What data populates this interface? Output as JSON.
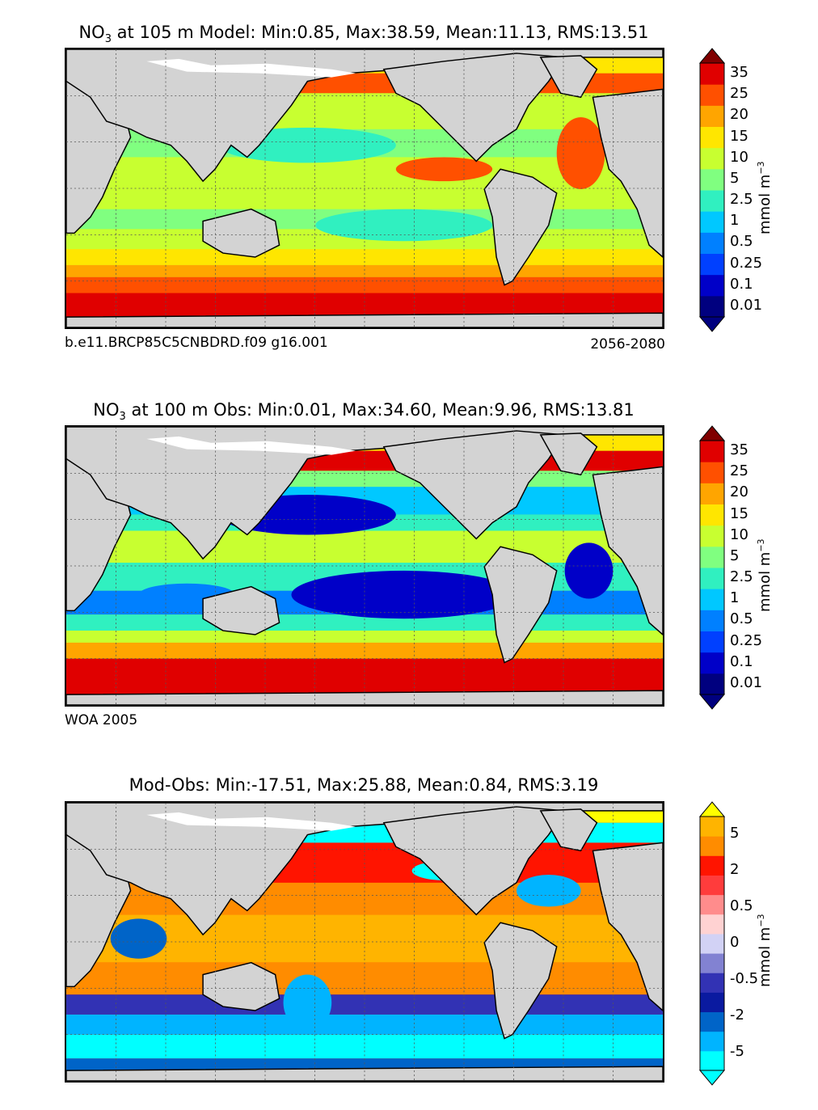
{
  "chart_data": [
    {
      "type": "heatmap",
      "title_prefix": "NO",
      "title_sub": "3",
      "title_rest": "at 105 m Model: Min:0.85, Max:38.59, Mean:11.13, RMS:13.51",
      "stats": {
        "min": 0.85,
        "max": 38.59,
        "mean": 11.13,
        "rms": 13.51
      },
      "footer_left": "b.e11.BRCP85C5CNBDRD.f09 g16.001",
      "footer_right": "2056-2080",
      "colorbar": {
        "unit": "mmol m",
        "unit_sup": "−3",
        "levels": [
          "0.01",
          "0.1",
          "0.25",
          "0.5",
          "1",
          "2.5",
          "5",
          "10",
          "15",
          "20",
          "25",
          "35"
        ],
        "colors": [
          "#00007f",
          "#0000c8",
          "#0040ff",
          "#0080ff",
          "#00c8ff",
          "#30f0c0",
          "#80ff80",
          "#c8ff30",
          "#ffe600",
          "#ffa500",
          "#ff5000",
          "#e00000",
          "#800000"
        ]
      }
    },
    {
      "type": "heatmap",
      "title_prefix": "NO",
      "title_sub": "3",
      "title_rest": "at 100 m Obs: Min:0.01, Max:34.60, Mean:9.96, RMS:13.81",
      "stats": {
        "min": 0.01,
        "max": 34.6,
        "mean": 9.96,
        "rms": 13.81
      },
      "footer_left": "WOA 2005",
      "footer_right": "",
      "colorbar": {
        "unit": "mmol m",
        "unit_sup": "−3",
        "levels": [
          "0.01",
          "0.1",
          "0.25",
          "0.5",
          "1",
          "2.5",
          "5",
          "10",
          "15",
          "20",
          "25",
          "35"
        ],
        "colors": [
          "#00007f",
          "#0000c8",
          "#0040ff",
          "#0080ff",
          "#00c8ff",
          "#30f0c0",
          "#80ff80",
          "#c8ff30",
          "#ffe600",
          "#ffa500",
          "#ff5000",
          "#e00000",
          "#800000"
        ]
      }
    },
    {
      "type": "heatmap",
      "title_prefix": "",
      "title_sub": "",
      "title_rest": "Mod-Obs: Min:-17.51, Max:25.88, Mean:0.84, RMS:3.19",
      "stats": {
        "min": -17.51,
        "max": 25.88,
        "mean": 0.84,
        "rms": 3.19
      },
      "footer_left": "",
      "footer_right": "",
      "colorbar": {
        "unit": "mmol m",
        "unit_sup": "−3",
        "labels": [
          "-5",
          "-2",
          "-0.5",
          "0",
          "0.5",
          "2",
          "5"
        ],
        "colors": [
          "#00ffff",
          "#00b4ff",
          "#0064c8",
          "#0a1aa0",
          "#3232b4",
          "#8282d2",
          "#d2d2f5",
          "#ffd2d2",
          "#ff8c8c",
          "#ff3c3c",
          "#ff1400",
          "#ff8c00",
          "#ffb400",
          "#ffff00"
        ]
      }
    }
  ]
}
